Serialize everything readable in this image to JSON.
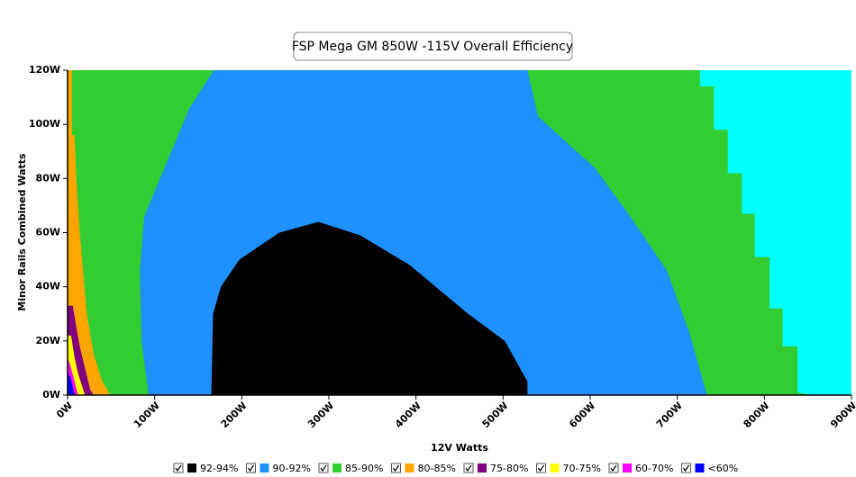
{
  "chart_data": {
    "type": "region",
    "title": "FSP Mega GM 850W -115V Overall Efficiency",
    "x_label": "12V Watts",
    "y_label": "Minor Rails Combined Watts",
    "plot_background": "#00ffff",
    "xlim": [
      0,
      900
    ],
    "ylim": [
      0,
      120
    ],
    "xticks": [
      {
        "value": 0,
        "label": "0W"
      },
      {
        "value": 100,
        "label": "100W"
      },
      {
        "value": 200,
        "label": "200W"
      },
      {
        "value": 300,
        "label": "300W"
      },
      {
        "value": 400,
        "label": "400W"
      },
      {
        "value": 500,
        "label": "500W"
      },
      {
        "value": 600,
        "label": "600W"
      },
      {
        "value": 700,
        "label": "700W"
      },
      {
        "value": 800,
        "label": "800W"
      },
      {
        "value": 900,
        "label": "900W"
      }
    ],
    "yticks": [
      {
        "value": 0,
        "label": "0W"
      },
      {
        "value": 20,
        "label": "20W"
      },
      {
        "value": 40,
        "label": "40W"
      },
      {
        "value": 60,
        "label": "60W"
      },
      {
        "value": 80,
        "label": "80W"
      },
      {
        "value": 100,
        "label": "100W"
      },
      {
        "value": 120,
        "label": "120W"
      }
    ],
    "series": [
      {
        "name": "92-94%",
        "color": "#000000",
        "x": [
          165,
          528,
          528,
          502,
          460,
          393,
          336,
          288,
          243,
          197,
          176,
          167
        ],
        "y": [
          0,
          0,
          5,
          20,
          30,
          48,
          59,
          64,
          60,
          50,
          40,
          30
        ]
      },
      {
        "name": "90-92%",
        "color": "#1e90ff",
        "x": [
          168,
          528,
          540,
          605,
          646,
          688,
          714,
          734,
          93,
          85,
          83,
          88,
          114,
          140
        ],
        "y": [
          120,
          120,
          103,
          84,
          66,
          46,
          23,
          0,
          0,
          20,
          46,
          66,
          86,
          106
        ]
      },
      {
        "name": "85-90%",
        "color": "#32cd32",
        "x": [
          0,
          726,
          726,
          742,
          742,
          758,
          758,
          774,
          774,
          789,
          789,
          806,
          806,
          821,
          821,
          838,
          838,
          853,
          0
        ],
        "y": [
          120,
          120,
          114,
          114,
          98,
          98,
          82,
          82,
          67,
          67,
          51,
          51,
          32,
          32,
          18,
          18,
          1,
          0,
          0
        ]
      },
      {
        "name": "80-85%",
        "color": "#ffa500",
        "x": [
          0,
          5,
          5,
          8,
          10,
          14,
          18,
          22,
          30,
          40,
          49,
          0
        ],
        "y": [
          120,
          120,
          96,
          96,
          80,
          60,
          45,
          30,
          15,
          5,
          0,
          0
        ]
      },
      {
        "name": "75-80%",
        "color": "#800080",
        "x": [
          0,
          6,
          10,
          14,
          20,
          26,
          30,
          0
        ],
        "y": [
          33,
          33,
          25,
          18,
          10,
          2,
          0,
          0
        ]
      },
      {
        "name": "70-75%",
        "color": "#ffff00",
        "x": [
          0,
          4,
          8,
          12,
          18,
          20,
          0
        ],
        "y": [
          22,
          22,
          14,
          8,
          2,
          0,
          0
        ]
      },
      {
        "name": "60-70%",
        "color": "#ff00ff",
        "x": [
          0,
          4,
          8,
          12,
          0
        ],
        "y": [
          14,
          10,
          5,
          0,
          0
        ]
      },
      {
        "name": "<60%",
        "color": "#0000ff",
        "x": [
          0,
          4,
          6,
          8,
          0
        ],
        "y": [
          8,
          6,
          3,
          0,
          0
        ]
      }
    ]
  }
}
